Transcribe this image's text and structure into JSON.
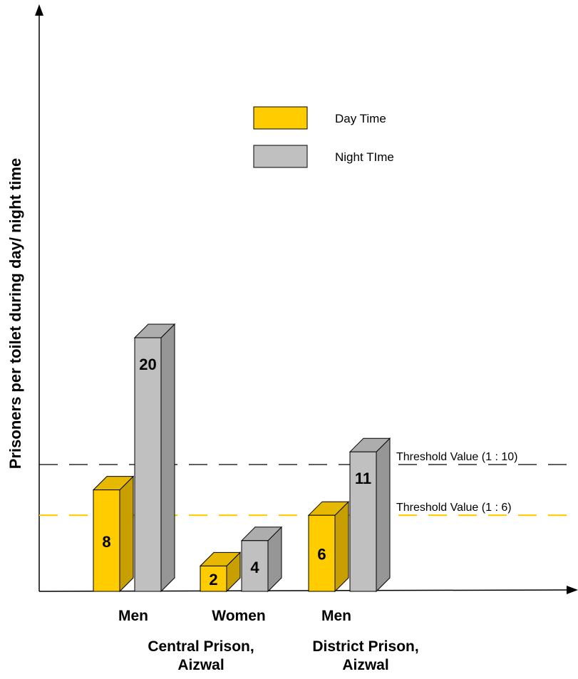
{
  "chart_data": {
    "type": "bar",
    "title": "",
    "xlabel": "",
    "ylabel": "Prisoners per toilet during day/ night time",
    "ylim": [
      0,
      21
    ],
    "grid": false,
    "legend_position": "top-right",
    "categories": [
      "Men",
      "Women",
      "Men"
    ],
    "group_labels": [
      {
        "label": "Central Prison,\nAizwal",
        "spans": [
          0,
          1
        ]
      },
      {
        "label": "District Prison,\nAizwal",
        "spans": [
          2,
          2
        ]
      }
    ],
    "series": [
      {
        "name": "Day Time",
        "color": "#FFCC00",
        "values": [
          8,
          2,
          6
        ]
      },
      {
        "name": "Night TIme",
        "color": "#C0C0C0",
        "values": [
          20,
          4,
          11
        ]
      }
    ],
    "reference_lines": [
      {
        "label": "Threshold Value (1 : 10)",
        "value": 10,
        "color": "#000000",
        "style": "dashed"
      },
      {
        "label": "Threshold Value (1 : 6)",
        "value": 6,
        "color": "#FFCC00",
        "style": "dashed"
      }
    ]
  }
}
